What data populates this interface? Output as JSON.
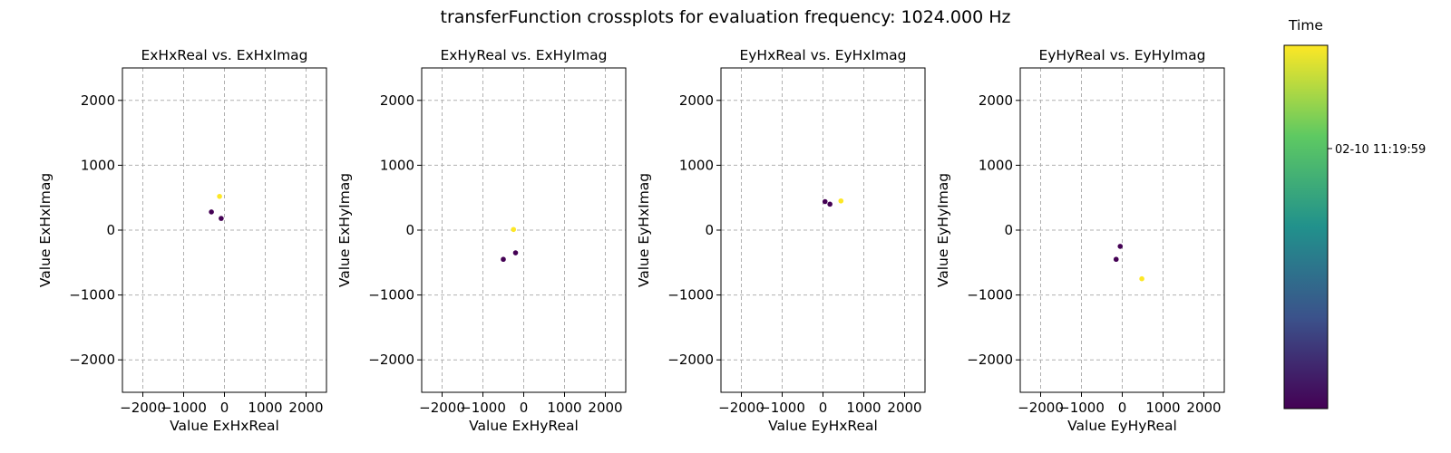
{
  "figure_title": "transferFunction crossplots for evaluation frequency: 1024.000 Hz",
  "colorbar": {
    "label": "Time",
    "tick_label": "02-10 11:19:59",
    "colormap": "viridis",
    "colors": [
      "#440154",
      "#3b528b",
      "#21918c",
      "#5ec962",
      "#fde725"
    ]
  },
  "point_colors": {
    "early": "#440154",
    "late": "#fde725"
  },
  "grid": true,
  "chart_data": [
    {
      "type": "scatter",
      "title": "ExHxReal vs. ExHxImag",
      "xlabel": "Value ExHxReal",
      "ylabel": "Value ExHxImag",
      "xlim": [
        -2500,
        2500
      ],
      "ylim": [
        -2500,
        2500
      ],
      "xticks": [
        -2000,
        -1000,
        0,
        1000,
        2000
      ],
      "yticks": [
        -2000,
        -1000,
        0,
        1000,
        2000
      ],
      "xtick_labels": [
        "−2000",
        "−1000",
        "0",
        "1000",
        "2000"
      ],
      "ytick_labels": [
        "−2000",
        "−1000",
        "0",
        "1000",
        "2000"
      ],
      "points": [
        {
          "x": -320,
          "y": 280,
          "time": "early"
        },
        {
          "x": -80,
          "y": 180,
          "time": "early"
        },
        {
          "x": -120,
          "y": 520,
          "time": "late"
        }
      ]
    },
    {
      "type": "scatter",
      "title": "ExHyReal vs. ExHyImag",
      "xlabel": "Value ExHyReal",
      "ylabel": "Value ExHyImag",
      "xlim": [
        -2500,
        2500
      ],
      "ylim": [
        -2500,
        2500
      ],
      "xticks": [
        -2000,
        -1000,
        0,
        1000,
        2000
      ],
      "yticks": [
        -2000,
        -1000,
        0,
        1000,
        2000
      ],
      "xtick_labels": [
        "−2000",
        "−1000",
        "0",
        "1000",
        "2000"
      ],
      "ytick_labels": [
        "−2000",
        "−1000",
        "0",
        "1000",
        "2000"
      ],
      "points": [
        {
          "x": -500,
          "y": -450,
          "time": "early"
        },
        {
          "x": -200,
          "y": -350,
          "time": "early"
        },
        {
          "x": -250,
          "y": 10,
          "time": "late"
        }
      ]
    },
    {
      "type": "scatter",
      "title": "EyHxReal vs. EyHxImag",
      "xlabel": "Value EyHxReal",
      "ylabel": "Value EyHxImag",
      "xlim": [
        -2500,
        2500
      ],
      "ylim": [
        -2500,
        2500
      ],
      "xticks": [
        -2000,
        -1000,
        0,
        1000,
        2000
      ],
      "yticks": [
        -2000,
        -1000,
        0,
        1000,
        2000
      ],
      "xtick_labels": [
        "−2000",
        "−1000",
        "0",
        "1000",
        "2000"
      ],
      "ytick_labels": [
        "−2000",
        "−1000",
        "0",
        "1000",
        "2000"
      ],
      "points": [
        {
          "x": 50,
          "y": 440,
          "time": "early"
        },
        {
          "x": 170,
          "y": 400,
          "time": "early"
        },
        {
          "x": 440,
          "y": 450,
          "time": "late"
        }
      ]
    },
    {
      "type": "scatter",
      "title": "EyHyReal vs. EyHyImag",
      "xlabel": "Value EyHyReal",
      "ylabel": "Value EyHyImag",
      "xlim": [
        -2500,
        2500
      ],
      "ylim": [
        -2500,
        2500
      ],
      "xticks": [
        -2000,
        -1000,
        0,
        1000,
        2000
      ],
      "yticks": [
        -2000,
        -1000,
        0,
        1000,
        2000
      ],
      "xtick_labels": [
        "−2000",
        "−1000",
        "0",
        "1000",
        "2000"
      ],
      "ytick_labels": [
        "−2000",
        "−1000",
        "0",
        "1000",
        "2000"
      ],
      "points": [
        {
          "x": -150,
          "y": -450,
          "time": "early"
        },
        {
          "x": -50,
          "y": -250,
          "time": "early"
        },
        {
          "x": 480,
          "y": -750,
          "time": "late"
        }
      ]
    }
  ]
}
